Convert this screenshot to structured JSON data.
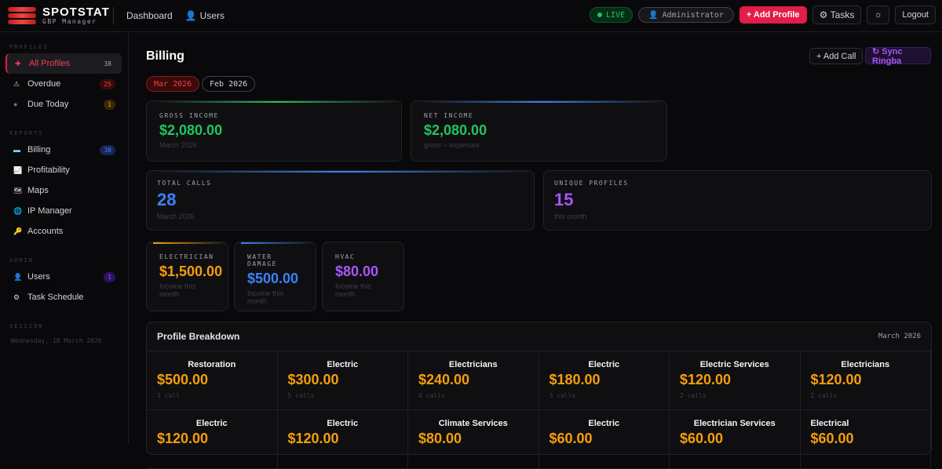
{
  "brand": {
    "title": "SPOTSTAT",
    "subtitle": "GBP Manager"
  },
  "nav": [
    {
      "label": "Dashboard",
      "icon": ""
    },
    {
      "label": "Users",
      "icon": "user-icon"
    }
  ],
  "header": {
    "live": "LIVE",
    "user": "Administrator",
    "add_profile": "+ Add Profile",
    "tasks": "Tasks",
    "theme_icon": "sun-icon",
    "logout": "Logout"
  },
  "sidebar": {
    "profiles_label": "PROFILES",
    "profiles": [
      {
        "label": "All Profiles",
        "badge": "38",
        "icon": "✚"
      },
      {
        "label": "Overdue",
        "badge": "25",
        "icon": "⚠"
      },
      {
        "label": "Due Today",
        "badge": "1",
        "icon": "●"
      }
    ],
    "reports_label": "REPORTS",
    "reports": [
      {
        "label": "Billing",
        "badge": "38",
        "icon": "▬"
      },
      {
        "label": "Profitability",
        "icon": "📈"
      },
      {
        "label": "Maps",
        "icon": "🗺"
      },
      {
        "label": "IP Manager",
        "icon": "🌐"
      },
      {
        "label": "Accounts",
        "icon": "🔑"
      }
    ],
    "admin_label": "ADMIN",
    "admin": [
      {
        "label": "Users",
        "badge": "1",
        "icon": "👤"
      },
      {
        "label": "Task Schedule",
        "icon": "⚙"
      }
    ],
    "session_label": "SESSION",
    "session_date": "Wednesday, 18 March 2026"
  },
  "page": {
    "title": "Billing",
    "add_call": "+ Add Call",
    "sync": "↻ Sync Ringba",
    "tabs": [
      "Mar 2026",
      "Feb 2026"
    ]
  },
  "stats": [
    {
      "label": "GROSS INCOME",
      "value": "$2,080.00",
      "sub": "March 2026",
      "color": "#22c55e"
    },
    {
      "label": "NET INCOME",
      "value": "$2,080.00",
      "sub": "gross − expenses",
      "color": "#22c55e"
    },
    {
      "label": "TOTAL CALLS",
      "value": "28",
      "sub": "March 2026",
      "color": "#3b82f6"
    },
    {
      "label": "UNIQUE PROFILES",
      "value": "15",
      "sub": "this month",
      "color": "#a855f7"
    }
  ],
  "categories": [
    {
      "label": "ELECTRICIAN",
      "value": "$1,500.00",
      "sub": "Income this month",
      "color": "#f59e0b"
    },
    {
      "label": "WATER DAMAGE",
      "value": "$500.00",
      "sub": "Income this month",
      "color": "#3b82f6"
    },
    {
      "label": "HVAC",
      "value": "$80.00",
      "sub": "Income this month",
      "color": "#a855f7"
    }
  ],
  "breakdown": {
    "title": "Profile Breakdown",
    "period": "March 2026",
    "items": [
      {
        "name": "Restoration",
        "amount": "$500.00",
        "calls": "1 call"
      },
      {
        "name": "Electric",
        "amount": "$300.00",
        "calls": "5 calls"
      },
      {
        "name": "Electricians",
        "amount": "$240.00",
        "calls": "4 calls"
      },
      {
        "name": "Electric",
        "amount": "$180.00",
        "calls": "3 calls"
      },
      {
        "name": "Electric Services",
        "amount": "$120.00",
        "calls": "2 calls"
      },
      {
        "name": "Electricians",
        "amount": "$120.00",
        "calls": "2 calls"
      },
      {
        "name": "Electric",
        "amount": "$120.00",
        "calls": ""
      },
      {
        "name": "Electric",
        "amount": "$120.00",
        "calls": ""
      },
      {
        "name": "Climate Services",
        "amount": "$80.00",
        "calls": ""
      },
      {
        "name": "Electric",
        "amount": "$60.00",
        "calls": ""
      },
      {
        "name": "Electrician Services",
        "amount": "$60.00",
        "calls": ""
      },
      {
        "name": "Electrical",
        "amount": "$60.00",
        "calls": ""
      }
    ]
  }
}
